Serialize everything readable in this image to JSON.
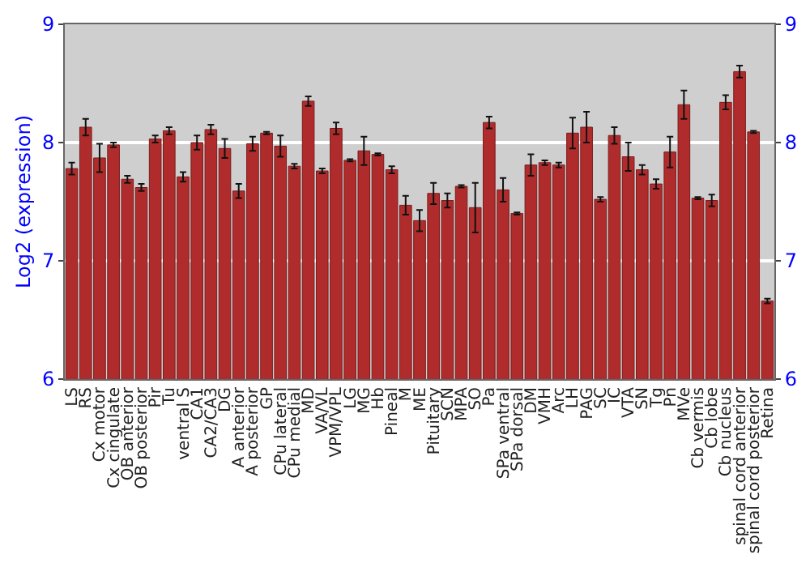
{
  "chart_data": {
    "type": "bar",
    "ylabel": "Log2 (expression)",
    "categories": [
      "LS",
      "RS",
      "Cx motor",
      "Cx cingulate",
      "OB anterior",
      "OB posterior",
      "Pir",
      "Tu",
      "ventral S",
      "CA1",
      "CA2/CA3",
      "DG",
      "A anterior",
      "A posterior",
      "GP",
      "CPu lateral",
      "CPu medial",
      "MD",
      "VA/VL",
      "VPM/VPL",
      "LG",
      "MG",
      "Hb",
      "Pineal",
      "M",
      "ME",
      "Pituitary",
      "SCN",
      "MPA",
      "SO",
      "Pa",
      "SPa ventral",
      "SPa dorsal",
      "DM",
      "VMH",
      "Arc",
      "LH",
      "PAG",
      "SC",
      "IC",
      "VTA",
      "SN",
      "Tg",
      "Pn",
      "MVe",
      "Cb vermis",
      "Cb lobe",
      "Cb nucleus",
      "spinal cord anterior",
      "spinal cord posterior",
      "Retina"
    ],
    "values": [
      7.78,
      8.13,
      7.87,
      7.98,
      7.69,
      7.62,
      8.03,
      8.1,
      7.71,
      8.0,
      8.11,
      7.95,
      7.59,
      7.99,
      8.08,
      7.97,
      7.8,
      8.35,
      7.76,
      8.12,
      7.85,
      7.93,
      7.9,
      7.77,
      7.47,
      7.34,
      7.57,
      7.51,
      7.63,
      7.45,
      8.17,
      7.6,
      7.4,
      7.81,
      7.83,
      7.81,
      8.08,
      8.13,
      7.52,
      8.06,
      7.88,
      7.77,
      7.65,
      7.92,
      8.32,
      7.53,
      7.51,
      8.34,
      8.6,
      8.09,
      6.66
    ],
    "errors": [
      0.05,
      0.07,
      0.12,
      0.02,
      0.03,
      0.03,
      0.03,
      0.03,
      0.04,
      0.06,
      0.04,
      0.08,
      0.06,
      0.06,
      0.01,
      0.09,
      0.02,
      0.04,
      0.02,
      0.05,
      0.01,
      0.12,
      0.01,
      0.03,
      0.08,
      0.09,
      0.09,
      0.06,
      0.01,
      0.21,
      0.05,
      0.1,
      0.01,
      0.09,
      0.02,
      0.02,
      0.13,
      0.13,
      0.02,
      0.07,
      0.12,
      0.04,
      0.04,
      0.13,
      0.12,
      0.01,
      0.05,
      0.06,
      0.05,
      0.01,
      0.02
    ],
    "color": "#b02c2c",
    "ylim": [
      6,
      9
    ],
    "yticks": [
      6,
      7,
      8,
      9
    ],
    "y2lim": [
      6,
      9
    ],
    "y2ticks": [
      6,
      7,
      8,
      9
    ],
    "grid": "y",
    "legend": false
  }
}
